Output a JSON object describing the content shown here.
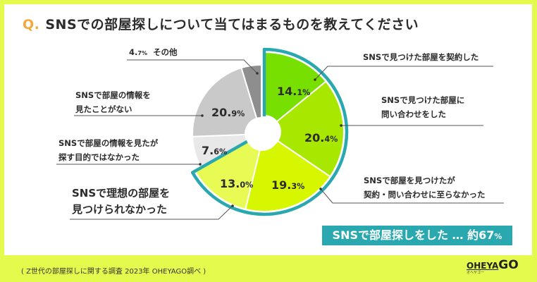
{
  "title": {
    "q": "Q.",
    "text": "SNSでの部屋探しについて当てはまるものを教えてください"
  },
  "chart_data": {
    "type": "pie",
    "donut": true,
    "start": "top",
    "direction": "clockwise",
    "slices": [
      {
        "label": "SNSで見つけた部屋を契約した",
        "value": 14.1,
        "color": "#78e000",
        "highlighted": true
      },
      {
        "label": "SNSで見つけた部屋に問い合わせをした",
        "value": 20.4,
        "color": "#a8e800",
        "highlighted": true
      },
      {
        "label": "SNSで部屋を見つけたが契約・問い合わせに至らなかった",
        "value": 19.3,
        "color": "#d6f700",
        "highlighted": true
      },
      {
        "label": "SNSで理想の部屋を見つけられなかった",
        "value": 13.0,
        "color": "#e8fb55",
        "highlighted": true
      },
      {
        "label": "SNSで部屋の情報を見たが探す目的ではなかった",
        "value": 7.6,
        "color": "#e8e8e8",
        "highlighted": false
      },
      {
        "label": "SNSで部屋の情報を見たことがない",
        "value": 20.9,
        "color": "#c9c9c9",
        "highlighted": false
      },
      {
        "label": "その他",
        "value": 4.7,
        "color": "#8e8e8e",
        "highlighted": false
      }
    ],
    "highlight_color": "#2aa8b0"
  },
  "labels": {
    "s0": {
      "line1": "SNSで見つけた部屋を契約した",
      "pct": "14.",
      "pct_dec": "1%"
    },
    "s1": {
      "line1": "SNSで見つけた部屋に",
      "line2": "問い合わせをした",
      "pct": "20.",
      "pct_dec": "4%"
    },
    "s2": {
      "line1": "SNSで部屋を見つけたが",
      "line2": "契約・問い合わせに至らなかった",
      "pct": "19.",
      "pct_dec": "3%"
    },
    "s3": {
      "line1": "SNSで理想の部屋を",
      "line2": "見つけられなかった",
      "pct": "13.",
      "pct_dec": "0%"
    },
    "s4": {
      "line1": "SNSで部屋の情報を見たが",
      "line2": "探す目的ではなかった",
      "pct": "7.",
      "pct_dec": "6%"
    },
    "s5": {
      "line1": "SNSで部屋の情報を",
      "line2": "見たことがない",
      "pct": "20.",
      "pct_dec": "9%"
    },
    "s6": {
      "line1": "その他",
      "pct": "4.",
      "pct_dec": "7%"
    }
  },
  "summary": {
    "text": "SNSで部屋探しをした … 約67",
    "pct": "%"
  },
  "footnote": "( Z世代の部屋探しに関する調査 2023年 OHEYAGO調べ )",
  "logo": {
    "main": "OHEYA",
    "go": "GO",
    "sub": "オヘヤゴー"
  }
}
